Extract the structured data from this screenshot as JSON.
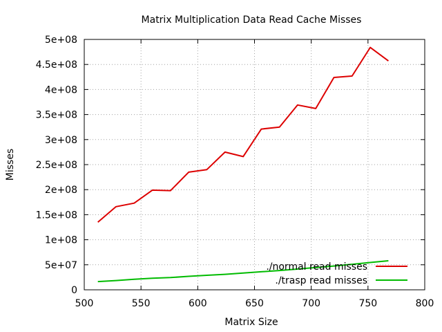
{
  "chart_data": {
    "type": "line",
    "title": "Matrix Multiplication Data Read Cache Misses",
    "xlabel": "Matrix Size",
    "ylabel": "Misses",
    "xlim": [
      500,
      800
    ],
    "ylim": [
      0,
      500000000
    ],
    "xticks": [
      500,
      550,
      600,
      650,
      700,
      750,
      800
    ],
    "xtick_labels": [
      "500",
      "550",
      "600",
      "650",
      "700",
      "750",
      "800"
    ],
    "yticks": [
      0,
      50000000,
      100000000,
      150000000,
      200000000,
      250000000,
      300000000,
      350000000,
      400000000,
      450000000,
      500000000
    ],
    "ytick_labels": [
      "0",
      "5e+07",
      "1e+08",
      "1.5e+08",
      "2e+08",
      "2.5e+08",
      "3e+08",
      "3.5e+08",
      "4e+08",
      "4.5e+08",
      "5e+08"
    ],
    "grid": true,
    "legend_position": "bottom-right",
    "x": [
      512,
      528,
      544,
      560,
      576,
      592,
      608,
      624,
      640,
      656,
      672,
      688,
      704,
      720,
      736,
      752,
      768
    ],
    "series": [
      {
        "name": "./normal read misses",
        "color": "#dd0000",
        "values": [
          135000000,
          166000000,
          173000000,
          199000000,
          198000000,
          235000000,
          240000000,
          275000000,
          266000000,
          321000000,
          325000000,
          369000000,
          362000000,
          424000000,
          427000000,
          484000000,
          457000000
        ]
      },
      {
        "name": "./trasp read misses",
        "color": "#00bb00",
        "values": [
          16500000,
          18500000,
          21000000,
          23000000,
          24500000,
          27000000,
          29000000,
          31000000,
          33500000,
          36000000,
          38500000,
          41500000,
          44500000,
          47500000,
          51000000,
          54500000,
          58000000
        ]
      }
    ]
  }
}
